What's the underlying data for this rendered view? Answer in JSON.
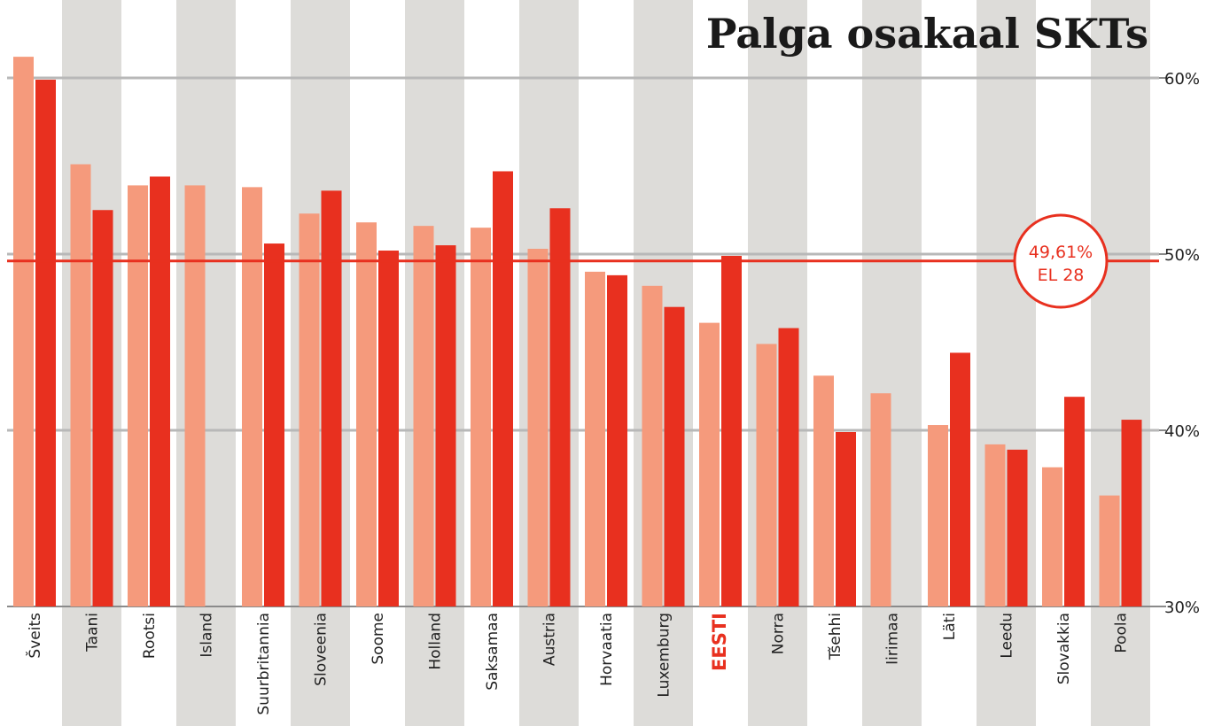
{
  "chart_data": {
    "type": "bar",
    "title": "Palga osakaal SKTs",
    "xlabel": "",
    "ylabel": "",
    "ylim": [
      30,
      63
    ],
    "yticks": [
      30,
      40,
      50,
      60
    ],
    "ytick_labels": [
      "30%",
      "40%",
      "50%",
      "60%"
    ],
    "categories": [
      "Šveits",
      "Taani",
      "Rootsi",
      "Island",
      "Suurbritannia",
      "Sloveenia",
      "Soome",
      "Holland",
      "Saksamaa",
      "Austria",
      "Horvaatia",
      "Luxemburg",
      "EESTI",
      "Norra",
      "Tšehhi",
      "Iirimaa",
      "Läti",
      "Leedu",
      "Slovakkia",
      "Poola"
    ],
    "highlight_category": "EESTI",
    "series": [
      {
        "color": "#f59a7c",
        "values": [
          61.2,
          55.1,
          53.9,
          53.9,
          53.8,
          52.3,
          51.8,
          51.6,
          51.5,
          50.3,
          49.0,
          48.2,
          46.1,
          44.9,
          43.1,
          42.1,
          40.3,
          39.2,
          37.9,
          36.3
        ]
      },
      {
        "color": "#e8301f",
        "values": [
          59.9,
          52.5,
          54.4,
          null,
          50.6,
          53.6,
          50.2,
          50.5,
          54.7,
          52.6,
          48.8,
          47.0,
          49.9,
          45.8,
          39.9,
          null,
          44.4,
          38.9,
          41.9,
          40.6
        ]
      }
    ],
    "reference_line": {
      "value": 49.61,
      "label": "49,61%",
      "sublabel": "EL 28",
      "color": "#e8301f"
    },
    "grid": true,
    "background_stripes": true
  },
  "colors": {
    "stripe": "#dddcd9",
    "gridline": "#b8b8b8",
    "accent": "#e8301f",
    "light_bar": "#f59a7c"
  }
}
